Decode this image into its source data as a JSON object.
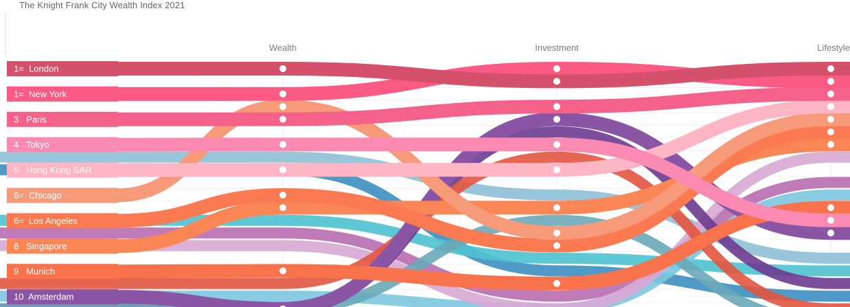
{
  "title": "The Knight Frank City Wealth Index 2021",
  "chart_data": {
    "type": "bump",
    "stages": [
      "Wealth",
      "Investment",
      "Lifestyle"
    ],
    "series": [
      {
        "label": "1=  London",
        "rank_overall": "1=",
        "city": "London",
        "color": "#d5506b",
        "ranks": [
          1,
          2,
          1
        ]
      },
      {
        "label": "1=  New York",
        "rank_overall": "1=",
        "city": "New York",
        "color": "#fb5a84",
        "ranks": [
          3,
          1,
          2
        ]
      },
      {
        "label": "3   Paris",
        "rank_overall": "3",
        "city": "Paris",
        "color": "#f4628b",
        "ranks": [
          5,
          4,
          3
        ]
      },
      {
        "label": "4   Tokyo",
        "rank_overall": "4",
        "city": "Tokyo",
        "color": "#fb8ab3",
        "ranks": [
          7,
          7,
          13
        ]
      },
      {
        "label": "5   Hong Kong SAR",
        "rank_overall": "5",
        "city": "Hong Kong SAR",
        "color": "#ffb6c4",
        "ranks": [
          9,
          9,
          4
        ]
      },
      {
        "label": "6=  Chicago",
        "rank_overall": "6=",
        "city": "Chicago",
        "color": "#f79a7a",
        "ranks": [
          4,
          14,
          5
        ]
      },
      {
        "label": "6=  Los Angeles",
        "rank_overall": "6=",
        "city": "Los Angeles",
        "color": "#fb7a52",
        "ranks": [
          11,
          15,
          6
        ]
      },
      {
        "label": "8   Singapore",
        "rank_overall": "8",
        "city": "Singapore",
        "color": "#fb8655",
        "ranks": [
          12,
          12,
          7
        ]
      },
      {
        "label": "9   Munich",
        "rank_overall": "9",
        "city": "Munich",
        "color": "#f8734c",
        "ranks": [
          17,
          18,
          12
        ]
      },
      {
        "label": "10  Amsterdam",
        "rank_overall": "10",
        "city": "Amsterdam",
        "color": "#8a55a5",
        "ranks": [
          20,
          5,
          14
        ]
      }
    ]
  }
}
